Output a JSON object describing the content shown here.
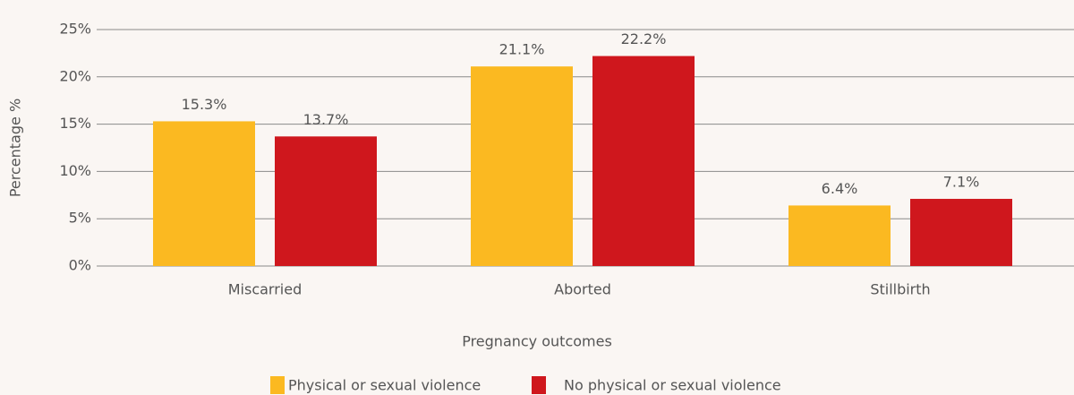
{
  "chart_data": {
    "type": "bar",
    "categories": [
      "Miscarried",
      "Aborted",
      "Stillbirth"
    ],
    "series": [
      {
        "name": "Physical or sexual violence",
        "color": "#fbb921",
        "values": [
          15.3,
          21.1,
          6.4
        ],
        "value_labels": [
          "15.3%",
          "21.1%",
          "6.4%"
        ]
      },
      {
        "name": "No physical or sexual violence",
        "color": "#cf171d",
        "values": [
          13.7,
          22.2,
          7.1
        ],
        "value_labels": [
          "13.7%",
          "22.2%",
          "7.1%"
        ]
      }
    ],
    "ylim": [
      0,
      25
    ],
    "yticks": [
      {
        "value": 0,
        "label": "0%"
      },
      {
        "value": 5,
        "label": "5%"
      },
      {
        "value": 10,
        "label": "10%"
      },
      {
        "value": 15,
        "label": "15%"
      },
      {
        "value": 20,
        "label": "20%"
      },
      {
        "value": 25,
        "label": "25%"
      }
    ],
    "ylabel": "Percentage %",
    "xlabel": "Pregnancy outcomes",
    "grid": true,
    "legend": "bottom"
  }
}
